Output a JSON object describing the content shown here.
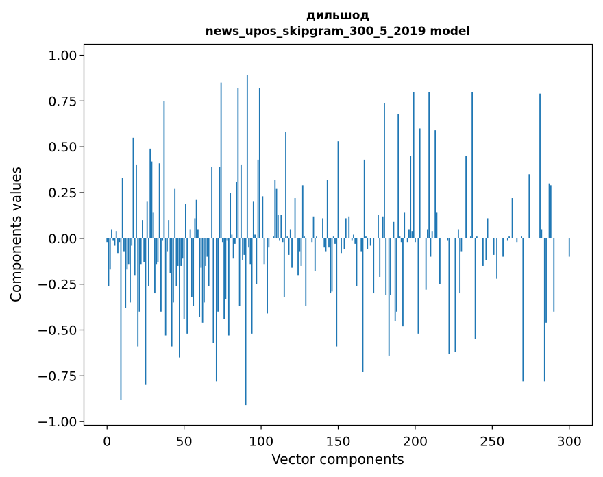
{
  "chart_data": {
    "type": "bar",
    "title_line1": "дильшод",
    "title_line2": "news_upos_skipgram_300_5_2019 model",
    "xlabel": "Vector components",
    "ylabel": "Components values",
    "xlim": [
      -15,
      315
    ],
    "ylim": [
      -1.02,
      1.06
    ],
    "xticks": [
      0,
      50,
      100,
      150,
      200,
      250,
      300
    ],
    "xtick_labels": [
      "0",
      "50",
      "100",
      "150",
      "200",
      "250",
      "300"
    ],
    "yticks": [
      1.0,
      0.75,
      0.5,
      0.25,
      0.0,
      -0.25,
      -0.5,
      -0.75,
      -1.0
    ],
    "ytick_labels": [
      "1.00",
      "0.75",
      "0.50",
      "0.25",
      "0.00",
      "−0.25",
      "−0.50",
      "−0.75",
      "−1.00"
    ],
    "bar_color": "#1f77b4",
    "values": [
      -0.02,
      -0.26,
      -0.17,
      0.05,
      -0.01,
      -0.04,
      0.04,
      -0.08,
      -0.02,
      -0.88,
      0.33,
      -0.07,
      -0.38,
      -0.17,
      -0.14,
      -0.35,
      -0.04,
      0.55,
      -0.2,
      0.4,
      -0.59,
      -0.4,
      -0.14,
      0.1,
      -0.13,
      -0.8,
      0.2,
      -0.26,
      0.49,
      0.42,
      0.14,
      -0.3,
      -0.14,
      -0.13,
      0.41,
      -0.4,
      -0.01,
      0.75,
      -0.53,
      -0.07,
      0.1,
      -0.19,
      -0.59,
      -0.35,
      0.27,
      -0.26,
      -0.15,
      -0.65,
      -0.15,
      -0.11,
      -0.44,
      0.19,
      -0.52,
      0.0,
      0.05,
      -0.32,
      -0.37,
      0.11,
      0.21,
      0.05,
      -0.43,
      -0.16,
      -0.46,
      -0.35,
      -0.15,
      -0.1,
      -0.26,
      0.0,
      0.39,
      -0.57,
      0.0,
      -0.78,
      -0.4,
      0.39,
      0.85,
      -0.02,
      -0.44,
      -0.33,
      -0.01,
      -0.53,
      0.25,
      0.02,
      -0.11,
      -0.03,
      0.31,
      0.82,
      -0.37,
      0.4,
      -0.12,
      -0.09,
      -0.91,
      0.89,
      -0.05,
      -0.14,
      -0.52,
      0.2,
      0.02,
      -0.25,
      0.43,
      0.82,
      0.0,
      0.23,
      -0.14,
      0.0,
      -0.41,
      -0.05,
      0.0,
      0.0,
      0.01,
      0.32,
      0.27,
      0.13,
      -0.01,
      0.13,
      -0.02,
      -0.32,
      0.58,
      0.01,
      -0.09,
      0.05,
      -0.16,
      0.0,
      0.22,
      0.0,
      -0.2,
      -0.07,
      -0.15,
      0.29,
      0.01,
      -0.37,
      0.0,
      0.0,
      0.0,
      -0.02,
      0.12,
      -0.18,
      0.01,
      0.0,
      0.0,
      0.0,
      0.11,
      -0.05,
      -0.07,
      0.32,
      -0.05,
      -0.3,
      -0.29,
      0.01,
      -0.03,
      -0.59,
      0.53,
      0.0,
      -0.08,
      0.0,
      -0.06,
      0.11,
      0.0,
      0.12,
      0.0,
      -0.01,
      0.02,
      -0.03,
      -0.26,
      0.0,
      0.0,
      -0.07,
      -0.73,
      0.43,
      0.01,
      -0.06,
      0.0,
      -0.04,
      0.0,
      -0.3,
      0.0,
      0.0,
      0.13,
      -0.21,
      0.0,
      0.12,
      0.74,
      -0.31,
      0.0,
      -0.64,
      -0.31,
      0.0,
      0.09,
      -0.45,
      -0.4,
      0.68,
      0.01,
      -0.02,
      -0.48,
      0.14,
      0.0,
      -0.02,
      0.05,
      0.45,
      0.04,
      0.8,
      -0.02,
      0.0,
      -0.52,
      0.6,
      0.0,
      0.0,
      0.0,
      -0.28,
      0.05,
      0.8,
      -0.1,
      0.04,
      0.0,
      0.59,
      0.14,
      0.0,
      -0.25,
      0.0,
      0.0,
      0.0,
      0.0,
      -0.01,
      -0.63,
      0.0,
      0.0,
      0.0,
      -0.62,
      0.0,
      0.05,
      -0.3,
      -0.07,
      0.0,
      0.0,
      0.45,
      0.0,
      0.0,
      0.01,
      0.8,
      0.0,
      -0.55,
      0.01,
      0.0,
      0.0,
      0.0,
      -0.15,
      0.0,
      -0.12,
      0.11,
      0.0,
      0.0,
      0.0,
      -0.09,
      0.0,
      -0.22,
      0.0,
      0.0,
      0.0,
      -0.1,
      0.0,
      0.0,
      -0.01,
      0.01,
      0.0,
      0.22,
      0.0,
      0.0,
      -0.02,
      0.0,
      0.0,
      0.01,
      -0.78,
      0.0,
      0.0,
      0.0,
      0.35,
      0.0,
      0.0,
      0.0,
      0.0,
      0.0,
      0.0,
      0.79,
      0.05,
      0.0,
      -0.78,
      -0.46,
      0.0,
      0.3,
      0.29,
      0.0,
      -0.4,
      0.0,
      0.0,
      0.0,
      0.0,
      0.0,
      0.0,
      0.0,
      0.0,
      0.0,
      -0.1
    ]
  }
}
